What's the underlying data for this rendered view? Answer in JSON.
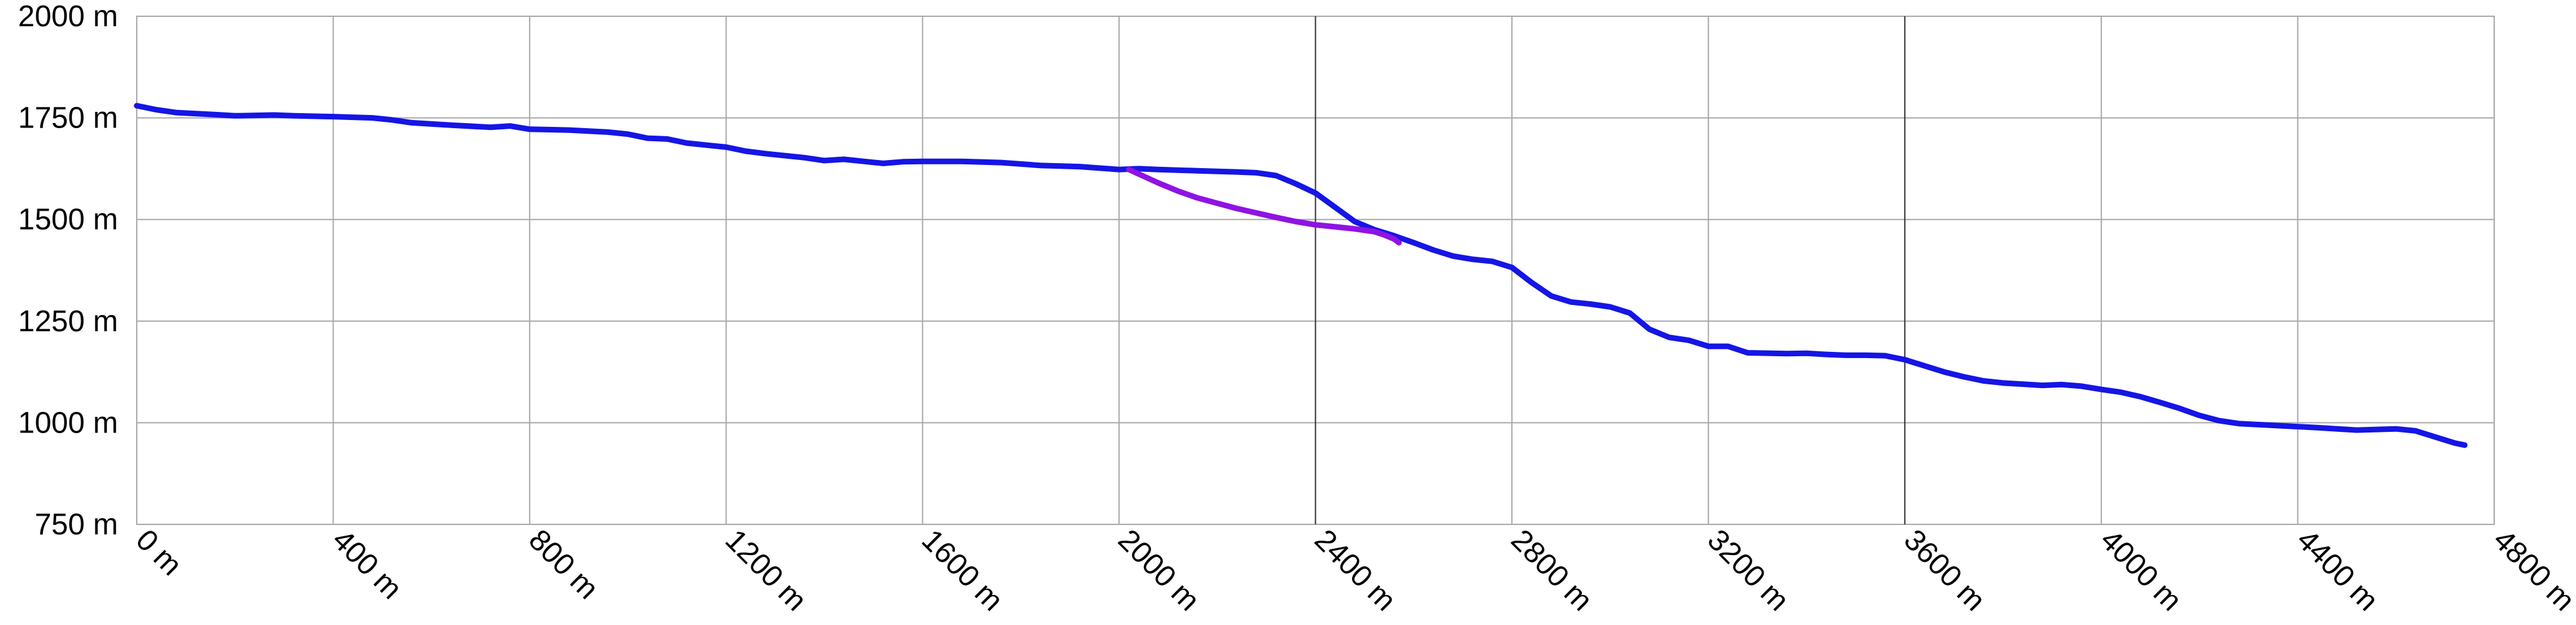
{
  "chart_data": {
    "type": "line",
    "title": "",
    "xlabel": "",
    "ylabel": "",
    "xlim": [
      0,
      4800
    ],
    "ylim": [
      750,
      2000
    ],
    "x_ticks": [
      "0 m",
      "400 m",
      "800 m",
      "1200 m",
      "1600 m",
      "2000 m",
      "2400 m",
      "2800 m",
      "3200 m",
      "3600 m",
      "4000 m",
      "4400 m",
      "4800 m"
    ],
    "y_ticks": [
      "750 m",
      "1000 m",
      "1250 m",
      "1500 m",
      "1750 m",
      "2000 m"
    ],
    "x_tick_values": [
      0,
      400,
      800,
      1200,
      1600,
      2000,
      2400,
      2800,
      3200,
      3600,
      4000,
      4400,
      4800
    ],
    "y_tick_values": [
      750,
      1000,
      1250,
      1500,
      1750,
      2000
    ],
    "emphasized_x_gridlines": [
      2400,
      3600
    ],
    "grid": true,
    "legend": "none",
    "series": [
      {
        "color": "#1515e6",
        "points": [
          [
            0,
            1780
          ],
          [
            40,
            1770
          ],
          [
            80,
            1763
          ],
          [
            160,
            1758
          ],
          [
            200,
            1755
          ],
          [
            280,
            1757
          ],
          [
            320,
            1755
          ],
          [
            400,
            1753
          ],
          [
            480,
            1750
          ],
          [
            520,
            1745
          ],
          [
            560,
            1738
          ],
          [
            640,
            1732
          ],
          [
            720,
            1727
          ],
          [
            760,
            1730
          ],
          [
            800,
            1722
          ],
          [
            880,
            1720
          ],
          [
            960,
            1715
          ],
          [
            1000,
            1710
          ],
          [
            1040,
            1700
          ],
          [
            1080,
            1698
          ],
          [
            1120,
            1688
          ],
          [
            1160,
            1683
          ],
          [
            1200,
            1678
          ],
          [
            1240,
            1668
          ],
          [
            1280,
            1662
          ],
          [
            1360,
            1652
          ],
          [
            1400,
            1645
          ],
          [
            1440,
            1648
          ],
          [
            1480,
            1643
          ],
          [
            1520,
            1638
          ],
          [
            1560,
            1642
          ],
          [
            1600,
            1643
          ],
          [
            1680,
            1643
          ],
          [
            1760,
            1640
          ],
          [
            1840,
            1633
          ],
          [
            1920,
            1630
          ],
          [
            2000,
            1623
          ],
          [
            2040,
            1625
          ],
          [
            2080,
            1623
          ],
          [
            2160,
            1620
          ],
          [
            2240,
            1617
          ],
          [
            2280,
            1615
          ],
          [
            2320,
            1608
          ],
          [
            2360,
            1588
          ],
          [
            2400,
            1565
          ],
          [
            2440,
            1530
          ],
          [
            2480,
            1495
          ],
          [
            2520,
            1475
          ],
          [
            2560,
            1460
          ],
          [
            2600,
            1443
          ],
          [
            2640,
            1425
          ],
          [
            2680,
            1410
          ],
          [
            2720,
            1402
          ],
          [
            2760,
            1397
          ],
          [
            2800,
            1382
          ],
          [
            2840,
            1345
          ],
          [
            2880,
            1312
          ],
          [
            2920,
            1297
          ],
          [
            2960,
            1292
          ],
          [
            3000,
            1285
          ],
          [
            3040,
            1270
          ],
          [
            3080,
            1230
          ],
          [
            3120,
            1210
          ],
          [
            3160,
            1203
          ],
          [
            3200,
            1188
          ],
          [
            3240,
            1188
          ],
          [
            3280,
            1172
          ],
          [
            3360,
            1170
          ],
          [
            3400,
            1171
          ],
          [
            3440,
            1168
          ],
          [
            3480,
            1166
          ],
          [
            3520,
            1166
          ],
          [
            3560,
            1165
          ],
          [
            3600,
            1155
          ],
          [
            3640,
            1140
          ],
          [
            3680,
            1125
          ],
          [
            3720,
            1113
          ],
          [
            3760,
            1103
          ],
          [
            3800,
            1098
          ],
          [
            3840,
            1095
          ],
          [
            3880,
            1092
          ],
          [
            3920,
            1094
          ],
          [
            3960,
            1090
          ],
          [
            4000,
            1082
          ],
          [
            4040,
            1075
          ],
          [
            4080,
            1064
          ],
          [
            4120,
            1050
          ],
          [
            4160,
            1035
          ],
          [
            4200,
            1018
          ],
          [
            4240,
            1005
          ],
          [
            4280,
            998
          ],
          [
            4360,
            993
          ],
          [
            4440,
            988
          ],
          [
            4520,
            982
          ],
          [
            4600,
            985
          ],
          [
            4640,
            980
          ],
          [
            4680,
            965
          ],
          [
            4720,
            950
          ],
          [
            4740,
            945
          ]
        ]
      },
      {
        "color": "#8f13e3",
        "points": [
          [
            2020,
            1623
          ],
          [
            2080,
            1590
          ],
          [
            2120,
            1570
          ],
          [
            2160,
            1553
          ],
          [
            2200,
            1540
          ],
          [
            2240,
            1527
          ],
          [
            2280,
            1516
          ],
          [
            2320,
            1505
          ],
          [
            2360,
            1495
          ],
          [
            2400,
            1487
          ],
          [
            2440,
            1482
          ],
          [
            2480,
            1477
          ],
          [
            2520,
            1470
          ],
          [
            2540,
            1462
          ],
          [
            2560,
            1452
          ],
          [
            2570,
            1443
          ]
        ]
      }
    ]
  }
}
